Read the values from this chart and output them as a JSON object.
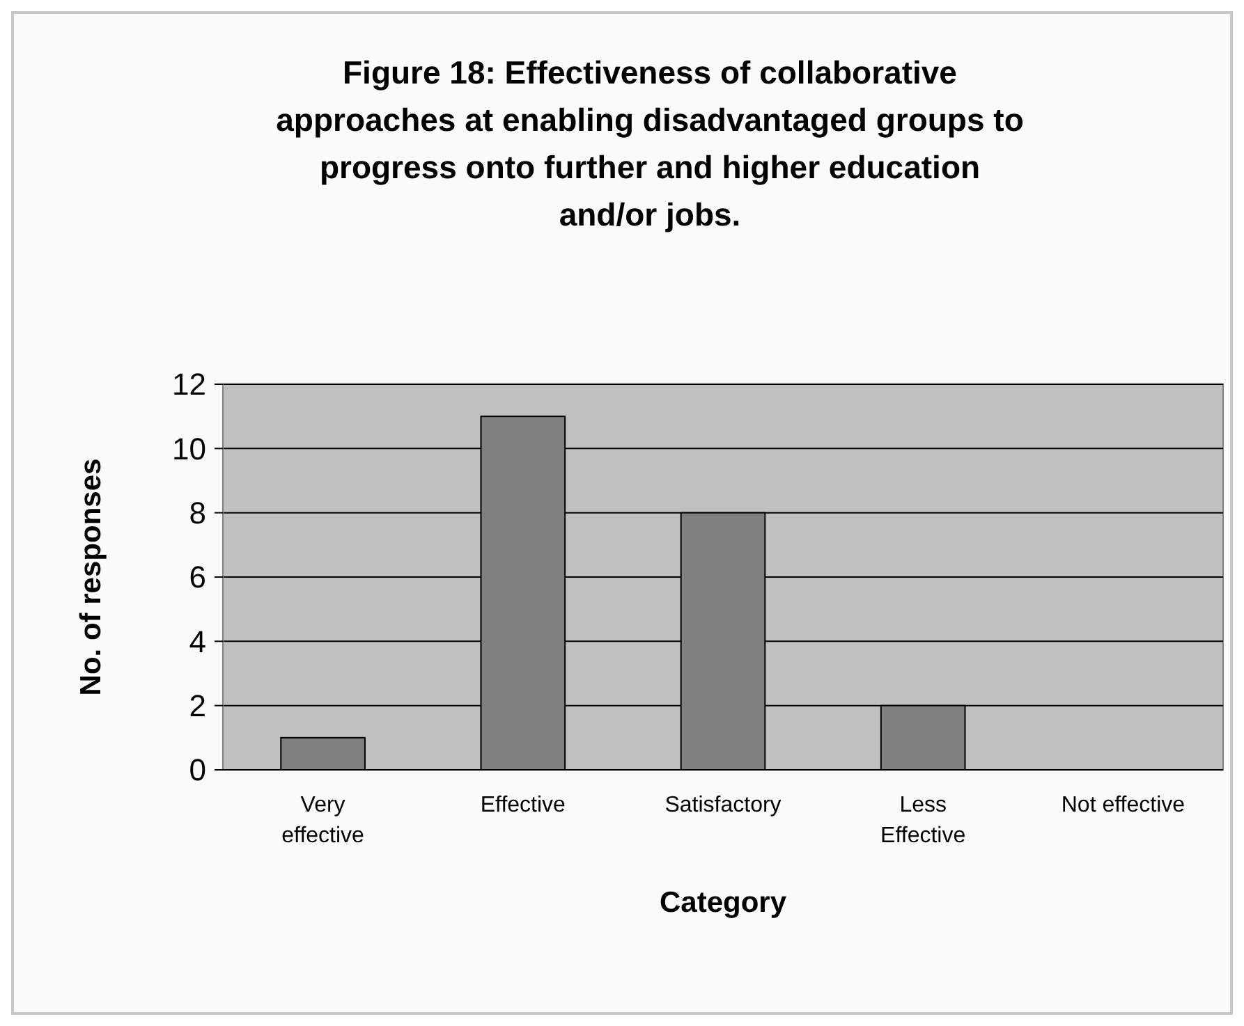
{
  "chart_data": {
    "type": "bar",
    "title": "Figure 18:  Effectiveness of collaborative approaches at enabling disadvantaged groups to progress onto further and higher education and/or jobs.",
    "xlabel": "Category",
    "ylabel": "No. of responses",
    "categories": [
      "Very effective",
      "Effective",
      "Satisfactory",
      "Less Effective",
      "Not effective"
    ],
    "values": [
      1,
      11,
      8,
      2,
      0
    ],
    "color": "#808080",
    "ylim": [
      0,
      12
    ],
    "yticks": [
      0,
      2,
      4,
      6,
      8,
      10,
      12
    ],
    "grid": "y"
  }
}
